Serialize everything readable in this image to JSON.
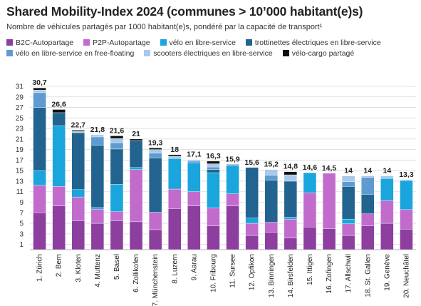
{
  "chart_data": {
    "type": "bar",
    "stacked": true,
    "title": "Shared Mobility-Index 2024 (communes > 10’000 habitant(e)s)",
    "subtitle": "Nombre de véhicules partagés par 1000 habitant(e)s, pondéré par la capacité de transport¹",
    "ylim": [
      0,
      31
    ],
    "yticks": [
      1,
      3,
      5,
      7,
      9,
      11,
      13,
      15,
      17,
      19,
      21,
      23,
      25,
      27,
      29,
      31
    ],
    "grid": true,
    "legend_position": "top",
    "categories": [
      "1. Zürich",
      "2. Bern",
      "3. Kloten",
      "4. Muttenz",
      "5. Basel",
      "6. Zollikofen",
      "7. Münchenstein",
      "8. Luzern",
      "9. Aarau",
      "10. Fribourg",
      "11. Sursee",
      "12. Opfikon",
      "13. Binningen",
      "14. Birsfelden",
      "15. Ittigen",
      "16. Zofingen",
      "17. Allschwil",
      "18. St. Gallen",
      "19. Genève",
      "20. Neuchâtel"
    ],
    "totals": [
      "30,7",
      "26,6",
      "22,7",
      "21,8",
      "21,6",
      "21",
      "19,3",
      "18",
      "17,1",
      "16,3",
      "15,9",
      "15,6",
      "15,2",
      "14,8",
      "14,6",
      "14,5",
      "14",
      "14",
      "14",
      "13,3"
    ],
    "series": [
      {
        "name": "B2C-Autopartage",
        "color": "#8c3f9f",
        "values": [
          7.0,
          8.3,
          5.5,
          5.0,
          5.5,
          5.3,
          3.8,
          7.8,
          8.3,
          4.5,
          8.3,
          2.7,
          3.3,
          2.2,
          4.3,
          4.0,
          2.7,
          4.5,
          5.0,
          3.9
        ]
      },
      {
        "name": "P2P-Autopartage",
        "color": "#c16ccc",
        "values": [
          5.2,
          3.7,
          4.5,
          2.7,
          1.7,
          9.9,
          3.3,
          3.7,
          2.7,
          3.4,
          2.3,
          2.3,
          1.9,
          3.6,
          6.5,
          10.5,
          2.2,
          2.3,
          4.3,
          3.7
        ]
      },
      {
        "name": "vélo en libre-service",
        "color": "#1aa5dc",
        "values": [
          2.8,
          11.5,
          1.4,
          0.3,
          5.2,
          0.4,
          0.0,
          5.8,
          5.5,
          6.7,
          5.3,
          1.0,
          0.0,
          0.4,
          3.8,
          0.0,
          0.9,
          0.0,
          4.2,
          5.5
        ]
      },
      {
        "name": "trottinettes électriques en libre-service",
        "color": "#22648f",
        "values": [
          12.0,
          2.5,
          10.8,
          11.8,
          6.7,
          5.1,
          10.3,
          0.0,
          0.0,
          0.6,
          0.0,
          9.6,
          8.0,
          6.8,
          0.0,
          0.0,
          6.2,
          3.7,
          0.0,
          0.0
        ]
      },
      {
        "name": "vélo en libre-service en free-floating",
        "color": "#5f9bd0",
        "values": [
          2.8,
          0.0,
          0.0,
          1.6,
          1.2,
          0.0,
          0.9,
          0.0,
          0.3,
          0.5,
          0.3,
          0.0,
          0.9,
          0.0,
          0.0,
          0.0,
          0.9,
          3.2,
          0.0,
          0.0
        ]
      },
      {
        "name": "scooters électriques en libre-service",
        "color": "#a7c9ea",
        "values": [
          0.5,
          0.0,
          0.3,
          0.4,
          0.8,
          0.0,
          0.7,
          0.4,
          0.3,
          0.6,
          0.0,
          0.0,
          1.1,
          1.2,
          0.0,
          0.0,
          1.1,
          0.3,
          0.5,
          0.2
        ]
      },
      {
        "name": "vélo-cargo partagé",
        "color": "#111111",
        "values": [
          0.4,
          0.6,
          0.2,
          0.0,
          0.5,
          0.3,
          0.3,
          0.3,
          0.0,
          0.5,
          0.0,
          0.0,
          0.0,
          0.6,
          0.0,
          0.0,
          0.0,
          0.0,
          0.0,
          0.0
        ]
      }
    ]
  }
}
